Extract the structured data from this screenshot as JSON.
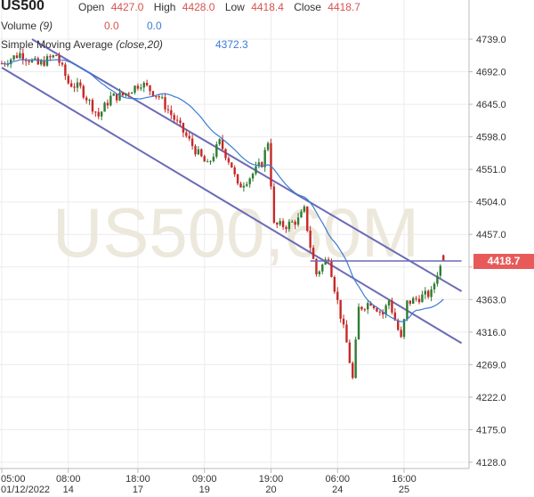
{
  "header": {
    "symbol": "US500",
    "open_label": "Open",
    "open": "4427.0",
    "high_label": "High",
    "high": "4428.0",
    "low_label": "Low",
    "low": "4418.4",
    "close_label": "Close",
    "close": "4418.7",
    "volume_label": "Volume",
    "volume_param": "(9)",
    "volume_v1": "0.0",
    "volume_v2": "0.0",
    "sma_label": "Simple Moving Average",
    "sma_param": "(close,20)",
    "sma_value": "4372.3"
  },
  "watermark": "US500,60M",
  "last_price_tag": "4418.7",
  "colors": {
    "up": "#2e7d32",
    "down": "#c62828",
    "sma": "#3a7bd5",
    "channel": "#6a6ab8",
    "tag": "#e85a5a",
    "grid": "#ececec",
    "watermark": "#ece8dc"
  },
  "chart_data": {
    "type": "candlestick",
    "ylim": [
      4128,
      4770
    ],
    "y_ticks": [
      4739.0,
      4692.0,
      4645.0,
      4598.0,
      4551.0,
      4504.0,
      4457.0,
      4410.0,
      4363.0,
      4316.0,
      4269.0,
      4222.0,
      4175.0,
      4128.0
    ],
    "y_tick_labels": [
      "4739.0",
      "4692.0",
      "4645.0",
      "4598.0",
      "4551.0",
      "4504.0",
      "4457.0",
      "",
      "4363.0",
      "4316.0",
      "4269.0",
      "4222.0",
      "4175.0",
      "4128.0"
    ],
    "x_ticks": [
      {
        "bar": 0,
        "time": "05:00",
        "date": "01/12/2022"
      },
      {
        "bar": 22,
        "time": "08:00",
        "date": "14"
      },
      {
        "bar": 45,
        "time": "18:00",
        "date": "17"
      },
      {
        "bar": 67,
        "time": "09:00",
        "date": "19"
      },
      {
        "bar": 89,
        "time": "19:00",
        "date": "20"
      },
      {
        "bar": 111,
        "time": "06:00",
        "date": "24"
      },
      {
        "bar": 133,
        "time": "16:00",
        "date": "25"
      }
    ],
    "n_bars": 154,
    "close_path": [
      [
        0,
        4704
      ],
      [
        6,
        4718
      ],
      [
        12,
        4702
      ],
      [
        18,
        4716
      ],
      [
        22,
        4676
      ],
      [
        26,
        4668
      ],
      [
        32,
        4628
      ],
      [
        36,
        4655
      ],
      [
        40,
        4658
      ],
      [
        46,
        4676
      ],
      [
        52,
        4656
      ],
      [
        56,
        4630
      ],
      [
        60,
        4605
      ],
      [
        64,
        4579
      ],
      [
        68,
        4556
      ],
      [
        72,
        4590
      ],
      [
        76,
        4556
      ],
      [
        78,
        4525
      ],
      [
        82,
        4540
      ],
      [
        86,
        4560
      ],
      [
        88,
        4592
      ],
      [
        90,
        4470
      ],
      [
        94,
        4470
      ],
      [
        98,
        4478
      ],
      [
        100,
        4492
      ],
      [
        102,
        4440
      ],
      [
        104,
        4400
      ],
      [
        108,
        4425
      ],
      [
        110,
        4380
      ],
      [
        114,
        4300
      ],
      [
        116,
        4248
      ],
      [
        118,
        4350
      ],
      [
        122,
        4360
      ],
      [
        126,
        4342
      ],
      [
        128,
        4362
      ],
      [
        132,
        4305
      ],
      [
        134,
        4358
      ],
      [
        138,
        4366
      ],
      [
        142,
        4372
      ],
      [
        144,
        4402
      ],
      [
        146,
        4418.7
      ]
    ],
    "last_bar": {
      "open": 4427.0,
      "high": 4428.0,
      "low": 4418.4,
      "close": 4418.7
    },
    "sma_period": 20,
    "channel_lines": [
      {
        "from": [
          10,
          4739.0
        ],
        "to": [
          152,
          4375.0
        ]
      },
      {
        "from": [
          0,
          4698.0
        ],
        "to": [
          152,
          4300.0
        ]
      }
    ],
    "horizontal_line": {
      "from_bar": 102,
      "to_bar": 152,
      "price": 4418.7
    }
  }
}
